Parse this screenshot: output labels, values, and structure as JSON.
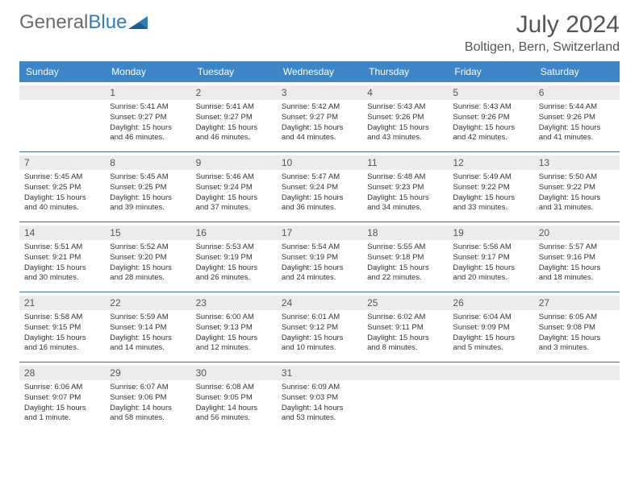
{
  "logo": {
    "text1": "General",
    "text2": "Blue"
  },
  "title": {
    "month": "July 2024",
    "location": "Boltigen, Bern, Switzerland"
  },
  "colors": {
    "header_bg": "#3d85c6",
    "header_text": "#ffffff",
    "stripe_bg": "#ececec",
    "rule": "#3d6a94",
    "logo_gray": "#6b6b6b",
    "logo_blue": "#2f7bbf"
  },
  "day_names": [
    "Sunday",
    "Monday",
    "Tuesday",
    "Wednesday",
    "Thursday",
    "Friday",
    "Saturday"
  ],
  "weeks": [
    [
      {
        "n": "",
        "sr": "",
        "ss": "",
        "dl": ""
      },
      {
        "n": "1",
        "sr": "Sunrise: 5:41 AM",
        "ss": "Sunset: 9:27 PM",
        "dl": "Daylight: 15 hours and 46 minutes."
      },
      {
        "n": "2",
        "sr": "Sunrise: 5:41 AM",
        "ss": "Sunset: 9:27 PM",
        "dl": "Daylight: 15 hours and 46 minutes."
      },
      {
        "n": "3",
        "sr": "Sunrise: 5:42 AM",
        "ss": "Sunset: 9:27 PM",
        "dl": "Daylight: 15 hours and 44 minutes."
      },
      {
        "n": "4",
        "sr": "Sunrise: 5:43 AM",
        "ss": "Sunset: 9:26 PM",
        "dl": "Daylight: 15 hours and 43 minutes."
      },
      {
        "n": "5",
        "sr": "Sunrise: 5:43 AM",
        "ss": "Sunset: 9:26 PM",
        "dl": "Daylight: 15 hours and 42 minutes."
      },
      {
        "n": "6",
        "sr": "Sunrise: 5:44 AM",
        "ss": "Sunset: 9:26 PM",
        "dl": "Daylight: 15 hours and 41 minutes."
      }
    ],
    [
      {
        "n": "7",
        "sr": "Sunrise: 5:45 AM",
        "ss": "Sunset: 9:25 PM",
        "dl": "Daylight: 15 hours and 40 minutes."
      },
      {
        "n": "8",
        "sr": "Sunrise: 5:45 AM",
        "ss": "Sunset: 9:25 PM",
        "dl": "Daylight: 15 hours and 39 minutes."
      },
      {
        "n": "9",
        "sr": "Sunrise: 5:46 AM",
        "ss": "Sunset: 9:24 PM",
        "dl": "Daylight: 15 hours and 37 minutes."
      },
      {
        "n": "10",
        "sr": "Sunrise: 5:47 AM",
        "ss": "Sunset: 9:24 PM",
        "dl": "Daylight: 15 hours and 36 minutes."
      },
      {
        "n": "11",
        "sr": "Sunrise: 5:48 AM",
        "ss": "Sunset: 9:23 PM",
        "dl": "Daylight: 15 hours and 34 minutes."
      },
      {
        "n": "12",
        "sr": "Sunrise: 5:49 AM",
        "ss": "Sunset: 9:22 PM",
        "dl": "Daylight: 15 hours and 33 minutes."
      },
      {
        "n": "13",
        "sr": "Sunrise: 5:50 AM",
        "ss": "Sunset: 9:22 PM",
        "dl": "Daylight: 15 hours and 31 minutes."
      }
    ],
    [
      {
        "n": "14",
        "sr": "Sunrise: 5:51 AM",
        "ss": "Sunset: 9:21 PM",
        "dl": "Daylight: 15 hours and 30 minutes."
      },
      {
        "n": "15",
        "sr": "Sunrise: 5:52 AM",
        "ss": "Sunset: 9:20 PM",
        "dl": "Daylight: 15 hours and 28 minutes."
      },
      {
        "n": "16",
        "sr": "Sunrise: 5:53 AM",
        "ss": "Sunset: 9:19 PM",
        "dl": "Daylight: 15 hours and 26 minutes."
      },
      {
        "n": "17",
        "sr": "Sunrise: 5:54 AM",
        "ss": "Sunset: 9:19 PM",
        "dl": "Daylight: 15 hours and 24 minutes."
      },
      {
        "n": "18",
        "sr": "Sunrise: 5:55 AM",
        "ss": "Sunset: 9:18 PM",
        "dl": "Daylight: 15 hours and 22 minutes."
      },
      {
        "n": "19",
        "sr": "Sunrise: 5:56 AM",
        "ss": "Sunset: 9:17 PM",
        "dl": "Daylight: 15 hours and 20 minutes."
      },
      {
        "n": "20",
        "sr": "Sunrise: 5:57 AM",
        "ss": "Sunset: 9:16 PM",
        "dl": "Daylight: 15 hours and 18 minutes."
      }
    ],
    [
      {
        "n": "21",
        "sr": "Sunrise: 5:58 AM",
        "ss": "Sunset: 9:15 PM",
        "dl": "Daylight: 15 hours and 16 minutes."
      },
      {
        "n": "22",
        "sr": "Sunrise: 5:59 AM",
        "ss": "Sunset: 9:14 PM",
        "dl": "Daylight: 15 hours and 14 minutes."
      },
      {
        "n": "23",
        "sr": "Sunrise: 6:00 AM",
        "ss": "Sunset: 9:13 PM",
        "dl": "Daylight: 15 hours and 12 minutes."
      },
      {
        "n": "24",
        "sr": "Sunrise: 6:01 AM",
        "ss": "Sunset: 9:12 PM",
        "dl": "Daylight: 15 hours and 10 minutes."
      },
      {
        "n": "25",
        "sr": "Sunrise: 6:02 AM",
        "ss": "Sunset: 9:11 PM",
        "dl": "Daylight: 15 hours and 8 minutes."
      },
      {
        "n": "26",
        "sr": "Sunrise: 6:04 AM",
        "ss": "Sunset: 9:09 PM",
        "dl": "Daylight: 15 hours and 5 minutes."
      },
      {
        "n": "27",
        "sr": "Sunrise: 6:05 AM",
        "ss": "Sunset: 9:08 PM",
        "dl": "Daylight: 15 hours and 3 minutes."
      }
    ],
    [
      {
        "n": "28",
        "sr": "Sunrise: 6:06 AM",
        "ss": "Sunset: 9:07 PM",
        "dl": "Daylight: 15 hours and 1 minute."
      },
      {
        "n": "29",
        "sr": "Sunrise: 6:07 AM",
        "ss": "Sunset: 9:06 PM",
        "dl": "Daylight: 14 hours and 58 minutes."
      },
      {
        "n": "30",
        "sr": "Sunrise: 6:08 AM",
        "ss": "Sunset: 9:05 PM",
        "dl": "Daylight: 14 hours and 56 minutes."
      },
      {
        "n": "31",
        "sr": "Sunrise: 6:09 AM",
        "ss": "Sunset: 9:03 PM",
        "dl": "Daylight: 14 hours and 53 minutes."
      },
      {
        "n": "",
        "sr": "",
        "ss": "",
        "dl": ""
      },
      {
        "n": "",
        "sr": "",
        "ss": "",
        "dl": ""
      },
      {
        "n": "",
        "sr": "",
        "ss": "",
        "dl": ""
      }
    ]
  ]
}
